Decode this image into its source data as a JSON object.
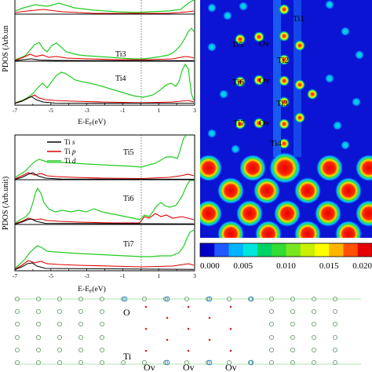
{
  "chart_data": [
    {
      "type": "line",
      "panel": "top",
      "ylabel": "PDOS (Arb.unit)",
      "xlabel": "E-E_F(eV)",
      "xlabel_main": "E-E",
      "xlabel_sub": "F",
      "xlabel_tail": "(eV)",
      "xlim": [
        -7,
        3
      ],
      "x_ticks": [
        "-7",
        "-5",
        "-3",
        "-1",
        "1",
        "3"
      ],
      "subplots": [
        "Ti3",
        "Ti4"
      ],
      "series": [
        {
          "name": "Ti s",
          "color": "#000000"
        },
        {
          "name": "Ti p",
          "color": "#dd0000"
        },
        {
          "name": "Ti d",
          "color": "#22cc22"
        }
      ]
    },
    {
      "type": "line",
      "panel": "bottom",
      "ylabel": "PDOS (Arb.unit)",
      "xlabel": "E-E_F(eV)",
      "xlabel_main": "E-E",
      "xlabel_sub": "F",
      "xlabel_tail": "(eV)",
      "xlim": [
        -7,
        3
      ],
      "x_ticks": [
        "-7",
        "-5",
        "-3",
        "-1",
        "1",
        "3"
      ],
      "subplots": [
        "Ti5",
        "Ti6",
        "Ti7"
      ],
      "legend": [
        {
          "prefix": "Ti ",
          "orb": "s",
          "color": "#000000"
        },
        {
          "prefix": "Ti ",
          "orb": "p",
          "color": "#dd0000"
        },
        {
          "prefix": "Ti ",
          "orb": "d",
          "color": "#22cc22"
        }
      ]
    },
    {
      "type": "heatmap",
      "labels": [
        "Ti1",
        "Ov",
        "Ti5",
        "Ti2",
        "Ti6",
        "Ov",
        "Ti3",
        "Ti7",
        "Ov",
        "Ti4"
      ],
      "colorbar": {
        "ticks": [
          "0.000",
          "0.005",
          "0.010",
          "0.015",
          "0.020"
        ],
        "range": [
          0,
          0.02
        ],
        "colors": [
          "#0000c8",
          "#1e5aff",
          "#00b4ff",
          "#00e6dc",
          "#00d264",
          "#32dc32",
          "#78e61e",
          "#c8f000",
          "#ffff00",
          "#ffb400",
          "#ff5000",
          "#e60000"
        ]
      }
    }
  ],
  "structure": {
    "labels": {
      "o": "O",
      "ti": "Ti",
      "ov": [
        "Ov",
        "Ov",
        "Ov"
      ]
    }
  },
  "top_ylabel_visible": "PDOS (Arb.un"
}
